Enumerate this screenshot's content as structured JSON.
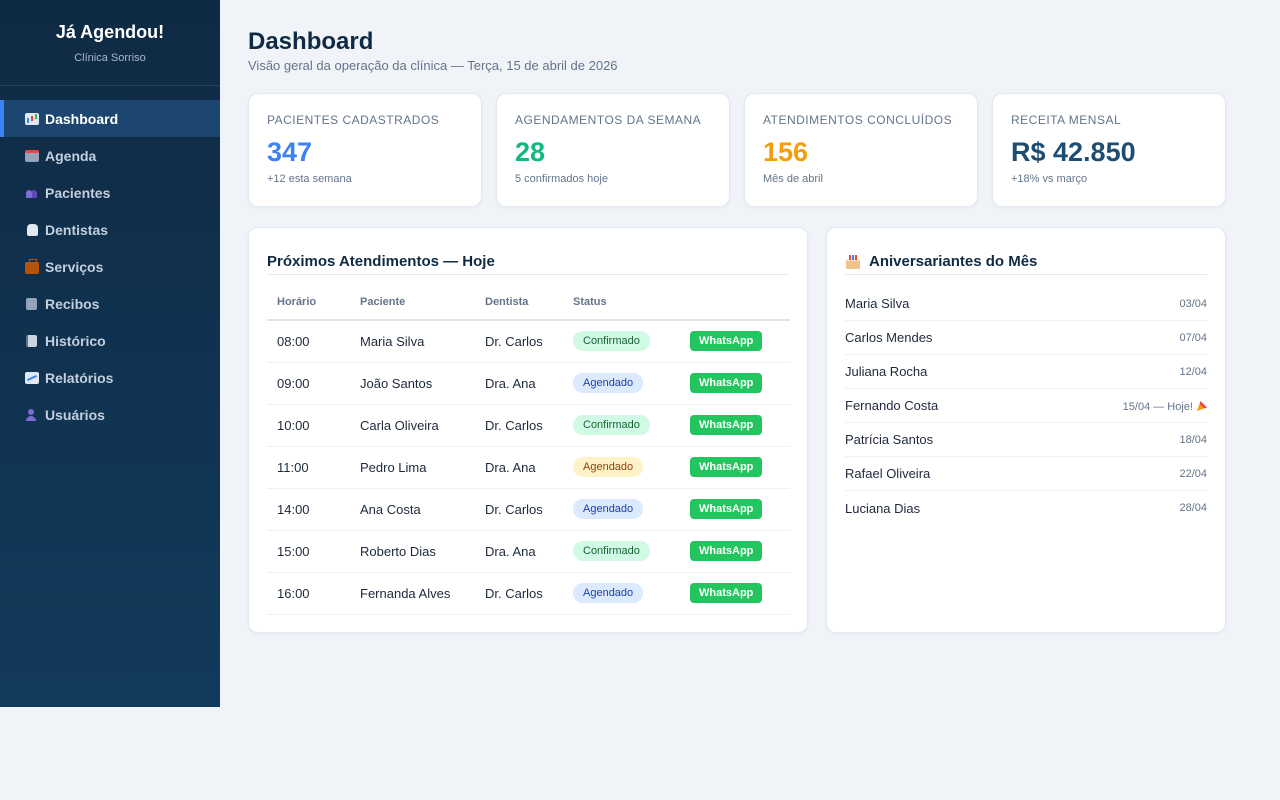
{
  "app": {
    "title": "Já Agendou!",
    "subtitle": "Clínica Sorriso"
  },
  "sidebar": {
    "items": [
      {
        "label": "Dashboard",
        "icon": "chart-icon",
        "active": true
      },
      {
        "label": "Agenda",
        "icon": "calendar-icon"
      },
      {
        "label": "Pacientes",
        "icon": "users-icon"
      },
      {
        "label": "Dentistas",
        "icon": "tooth-icon"
      },
      {
        "label": "Serviços",
        "icon": "briefcase-icon"
      },
      {
        "label": "Recibos",
        "icon": "receipt-icon"
      },
      {
        "label": "Histórico",
        "icon": "ledger-icon"
      },
      {
        "label": "Relatórios",
        "icon": "trend-icon"
      },
      {
        "label": "Usuários",
        "icon": "user-icon"
      }
    ]
  },
  "header": {
    "title": "Dashboard",
    "subtitle": "Visão geral da operação da clínica — Terça, 15 de abril de 2026"
  },
  "stats": [
    {
      "label": "Pacientes cadastrados",
      "value": "347",
      "note": "+12 esta semana",
      "color": "#3b82f6"
    },
    {
      "label": "Agendamentos da semana",
      "value": "28",
      "note": "5 confirmados hoje",
      "color": "#10b981"
    },
    {
      "label": "Atendimentos concluídos",
      "value": "156",
      "note": "Mês de abril",
      "color": "#f59e0b"
    },
    {
      "label": "Receita mensal",
      "value": "R$ 42.850",
      "note": "+18% vs março",
      "color": "#1e4d73"
    }
  ],
  "appointments": {
    "title": "Próximos Atendimentos — Hoje",
    "columns": [
      "Horário",
      "Paciente",
      "Dentista",
      "Status"
    ],
    "whatsapp_label": "WhatsApp",
    "rows": [
      {
        "time": "08:00",
        "patient": "Maria Silva",
        "dentist": "Dr. Carlos",
        "status": "Confirmado",
        "tone": "green"
      },
      {
        "time": "09:00",
        "patient": "João Santos",
        "dentist": "Dra. Ana",
        "status": "Agendado",
        "tone": "blue"
      },
      {
        "time": "10:00",
        "patient": "Carla Oliveira",
        "dentist": "Dr. Carlos",
        "status": "Confirmado",
        "tone": "green"
      },
      {
        "time": "11:00",
        "patient": "Pedro Lima",
        "dentist": "Dra. Ana",
        "status": "Agendado",
        "tone": "yellow"
      },
      {
        "time": "14:00",
        "patient": "Ana Costa",
        "dentist": "Dr. Carlos",
        "status": "Agendado",
        "tone": "blue"
      },
      {
        "time": "15:00",
        "patient": "Roberto Dias",
        "dentist": "Dra. Ana",
        "status": "Confirmado",
        "tone": "green"
      },
      {
        "time": "16:00",
        "patient": "Fernanda Alves",
        "dentist": "Dr. Carlos",
        "status": "Agendado",
        "tone": "blue"
      }
    ]
  },
  "birthdays": {
    "title": "Aniversariantes do Mês",
    "icon": "cake-icon",
    "items": [
      {
        "name": "Maria Silva",
        "date": "03/04"
      },
      {
        "name": "Carlos Mendes",
        "date": "07/04"
      },
      {
        "name": "Juliana Rocha",
        "date": "12/04"
      },
      {
        "name": "Fernando Costa",
        "date": "15/04 — Hoje!",
        "today": true
      },
      {
        "name": "Patrícia Santos",
        "date": "18/04"
      },
      {
        "name": "Rafael Oliveira",
        "date": "22/04"
      },
      {
        "name": "Luciana Dias",
        "date": "28/04"
      }
    ]
  }
}
